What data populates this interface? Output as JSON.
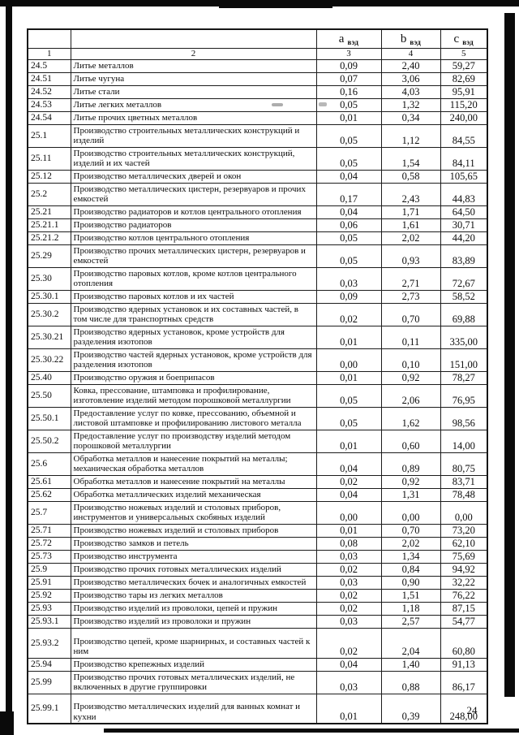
{
  "page": {
    "number": "24"
  },
  "table": {
    "variable_header": {
      "a": {
        "base": "a",
        "sub": "вэд"
      },
      "b": {
        "base": "b",
        "sub": "вэд"
      },
      "c": {
        "base": "c",
        "sub": "вэд"
      }
    },
    "numbering": [
      "1",
      "2",
      "3",
      "4",
      "5"
    ],
    "rows": [
      {
        "code": "24.5",
        "name": "Литье металлов",
        "a": "0,09",
        "b": "2,40",
        "c": "59,27"
      },
      {
        "code": "24.51",
        "name": "Литье чугуна",
        "a": "0,07",
        "b": "3,06",
        "c": "82,69"
      },
      {
        "code": "24.52",
        "name": "Литье стали",
        "a": "0,16",
        "b": "4,03",
        "c": "95,91"
      },
      {
        "code": "24.53",
        "name": "Литье легких металлов",
        "a": "0,05",
        "b": "1,32",
        "c": "115,20"
      },
      {
        "code": "24.54",
        "name": "Литье прочих цветных металлов",
        "a": "0,01",
        "b": "0,34",
        "c": "240,00"
      },
      {
        "code": "25.1",
        "name": "Производство строительных металлических конструкций и изделий",
        "a": "0,05",
        "b": "1,12",
        "c": "84,55"
      },
      {
        "code": "25.11",
        "name": "Производство строительных металлических конструкций, изделий и их частей",
        "a": "0,05",
        "b": "1,54",
        "c": "84,11"
      },
      {
        "code": "25.12",
        "name": "Производство металлических дверей и окон",
        "a": "0,04",
        "b": "0,58",
        "c": "105,65"
      },
      {
        "code": "25.2",
        "name": "Производство металлических цистерн, резервуаров и прочих емкостей",
        "a": "0,17",
        "b": "2,43",
        "c": "44,83"
      },
      {
        "code": "25.21",
        "name": "Производство радиаторов и котлов центрального отопления",
        "a": "0,04",
        "b": "1,71",
        "c": "64,50"
      },
      {
        "code": "25.21.1",
        "name": "Производство радиаторов",
        "a": "0,06",
        "b": "1,61",
        "c": "30,71"
      },
      {
        "code": "25.21.2",
        "name": "Производство котлов центрального отопления",
        "a": "0,05",
        "b": "2,02",
        "c": "44,20"
      },
      {
        "code": "25.29",
        "name": "Производство прочих металлических цистерн, резервуаров и емкостей",
        "a": "0,05",
        "b": "0,93",
        "c": "83,89"
      },
      {
        "code": "25.30",
        "name": "Производство паровых котлов, кроме котлов центрального отопления",
        "a": "0,03",
        "b": "2,71",
        "c": "72,67"
      },
      {
        "code": "25.30.1",
        "name": "Производство паровых котлов и их частей",
        "a": "0,09",
        "b": "2,73",
        "c": "58,52"
      },
      {
        "code": "25.30.2",
        "name": "Производство ядерных установок и их составных частей, в том числе для транспортных средств",
        "a": "0,02",
        "b": "0,70",
        "c": "69,88"
      },
      {
        "code": "25.30.21",
        "name": "Производство ядерных установок, кроме устройств для разделения изотопов",
        "a": "0,01",
        "b": "0,11",
        "c": "335,00"
      },
      {
        "code": "25.30.22",
        "name": "Производство частей ядерных установок, кроме устройств для разделения изотопов",
        "a": "0,00",
        "b": "0,10",
        "c": "151,00"
      },
      {
        "code": "25.40",
        "name": "Производство оружия и боеприпасов",
        "a": "0,01",
        "b": "0,92",
        "c": "78,27"
      },
      {
        "code": "25.50",
        "name": "Ковка, прессование, штамповка и профилирование, изготовление изделий методом порошковой металлургии",
        "a": "0,05",
        "b": "2,06",
        "c": "76,95"
      },
      {
        "code": "25.50.1",
        "name": "Предоставление услуг по ковке, прессованию, объемной и листовой штамповке и профилированию листового металла",
        "a": "0,05",
        "b": "1,62",
        "c": "98,56"
      },
      {
        "code": "25.50.2",
        "name": "Предоставление услуг по производству изделий методом порошковой металлургии",
        "a": "0,01",
        "b": "0,60",
        "c": "14,00"
      },
      {
        "code": "25.6",
        "name": "Обработка металлов и нанесение покрытий на металлы; механическая обработка металлов",
        "a": "0,04",
        "b": "0,89",
        "c": "80,75"
      },
      {
        "code": "25.61",
        "name": "Обработка металлов и нанесение покрытий на металлы",
        "a": "0,02",
        "b": "0,92",
        "c": "83,71"
      },
      {
        "code": "25.62",
        "name": "Обработка металлических изделий механическая",
        "a": "0,04",
        "b": "1,31",
        "c": "78,48"
      },
      {
        "code": "25.7",
        "name": "Производство ножевых изделий и столовых приборов, инструментов и универсальных скобяных изделий",
        "a": "0,00",
        "b": "0,00",
        "c": "0,00"
      },
      {
        "code": "25.71",
        "name": "Производство ножевых изделий и столовых приборов",
        "a": "0,01",
        "b": "0,70",
        "c": "73,20"
      },
      {
        "code": "25.72",
        "name": "Производство замков и петель",
        "a": "0,08",
        "b": "2,02",
        "c": "62,10"
      },
      {
        "code": "25.73",
        "name": "Производство инструмента",
        "a": "0,03",
        "b": "1,34",
        "c": "75,69"
      },
      {
        "code": "25.9",
        "name": "Производство прочих готовых металлических изделий",
        "a": "0,02",
        "b": "0,84",
        "c": "94,92"
      },
      {
        "code": "25.91",
        "name": "Производство металлических бочек и аналогичных емкостей",
        "a": "0,03",
        "b": "0,90",
        "c": "32,22"
      },
      {
        "code": "25.92",
        "name": "Производство тары из легких металлов",
        "a": "0,02",
        "b": "1,51",
        "c": "76,22"
      },
      {
        "code": "25.93",
        "name": "Производство изделий из проволоки, цепей и пружин",
        "a": "0,02",
        "b": "1,18",
        "c": "87,15"
      },
      {
        "code": "25.93.1",
        "name": "Производство изделий из проволоки и пружин",
        "a": "0,03",
        "b": "2,57",
        "c": "54,77"
      },
      {
        "code": "25.93.2",
        "name": "Производство цепей, кроме шарнирных, и составных частей к ним",
        "a": "0,02",
        "b": "2,04",
        "c": "60,80"
      },
      {
        "code": "25.94",
        "name": "Производство крепежных изделий",
        "a": "0,04",
        "b": "1,40",
        "c": "91,13"
      },
      {
        "code": "25.99",
        "name": "Производство прочих готовых металлических изделий, не включенных в другие группировки",
        "a": "0,03",
        "b": "0,88",
        "c": "86,17"
      },
      {
        "code": "25.99.1",
        "name": "Производство металлических изделий для ванных комнат и кухни",
        "a": "0,01",
        "b": "0,39",
        "c": "248,00"
      }
    ]
  }
}
